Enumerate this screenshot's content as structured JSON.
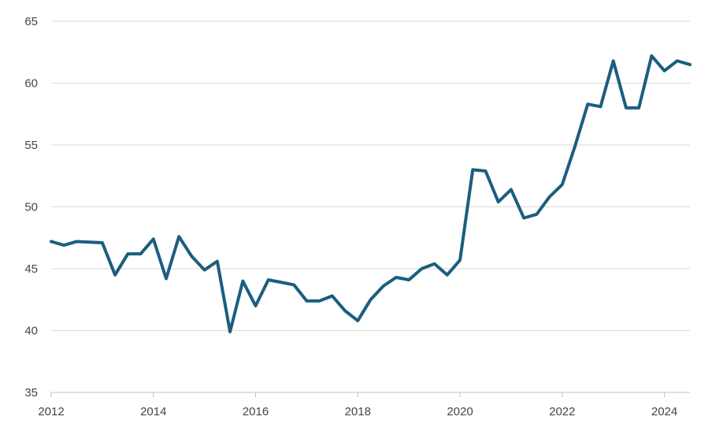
{
  "chart_data": {
    "type": "line",
    "title": "",
    "xlabel": "",
    "ylabel": "",
    "xlim": [
      2012,
      2024.5
    ],
    "ylim": [
      35,
      65
    ],
    "y_ticks": [
      35,
      40,
      45,
      50,
      55,
      60,
      65
    ],
    "x_ticks": [
      2012,
      2014,
      2016,
      2018,
      2020,
      2022,
      2024
    ],
    "grid": "horizontal",
    "colors": {
      "line": "#1b5e7f",
      "grid": "#d9d9d9",
      "axis": "#bfbfbf",
      "text": "#444444"
    },
    "series": [
      {
        "x": [
          2012.0,
          2012.25,
          2012.5,
          2012.75,
          2013.0,
          2013.25,
          2013.5,
          2013.75,
          2014.0,
          2014.25,
          2014.5,
          2014.75,
          2015.0,
          2015.25,
          2015.5,
          2015.75,
          2016.0,
          2016.25,
          2016.5,
          2016.75,
          2017.0,
          2017.25,
          2017.5,
          2017.75,
          2018.0,
          2018.25,
          2018.5,
          2018.75,
          2019.0,
          2019.25,
          2019.5,
          2019.75,
          2020.0,
          2020.25,
          2020.5,
          2020.75,
          2021.0,
          2021.25,
          2021.5,
          2021.75,
          2022.0,
          2022.25,
          2022.5,
          2022.75,
          2023.0,
          2023.25,
          2023.5,
          2023.75,
          2024.0,
          2024.25,
          2024.5
        ],
        "values": [
          47.2,
          46.9,
          47.2,
          47.15,
          47.1,
          44.5,
          46.2,
          46.2,
          47.4,
          44.2,
          47.6,
          46.0,
          44.9,
          45.6,
          39.9,
          44.0,
          42.0,
          44.1,
          43.9,
          43.7,
          42.4,
          42.4,
          42.8,
          41.6,
          40.8,
          42.5,
          43.6,
          44.3,
          44.1,
          45.0,
          45.4,
          44.5,
          45.7,
          53.0,
          52.9,
          50.4,
          51.4,
          49.1,
          49.4,
          50.8,
          51.8,
          54.9,
          58.3,
          58.1,
          61.8,
          58.0,
          58.0,
          62.2,
          61.0,
          61.8,
          61.5
        ]
      }
    ]
  }
}
